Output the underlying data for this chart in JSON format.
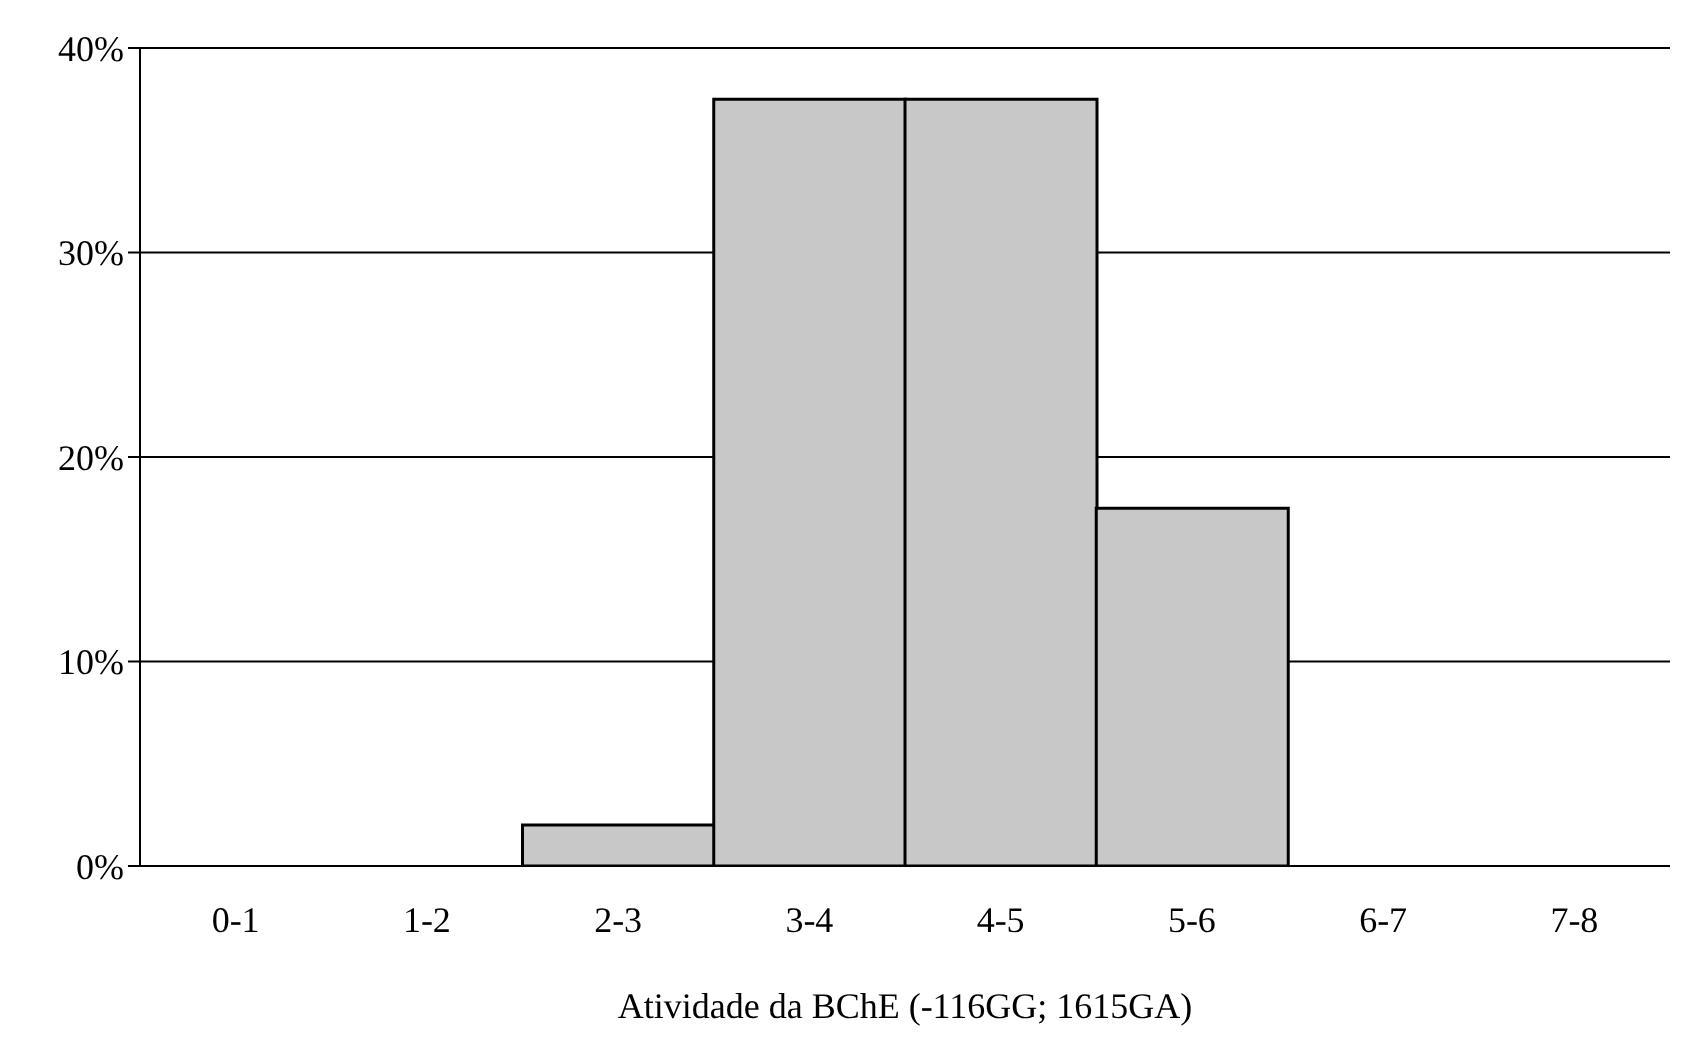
{
  "chart_data": {
    "type": "bar",
    "xlabel": "Atividade da BChE (-116GG; 1615GA)",
    "categories": [
      "0-1",
      "1-2",
      "2-3",
      "3-4",
      "4-5",
      "5-6",
      "6-7",
      "7-8"
    ],
    "series": [
      {
        "color": "#c8c8c8",
        "values": [
          0,
          0,
          2,
          37.5,
          37.5,
          17.5,
          0,
          0
        ]
      }
    ],
    "ylim": [
      0,
      40
    ],
    "yticks": [
      {
        "value": 0,
        "label": "0%"
      },
      {
        "value": 10,
        "label": "10%"
      },
      {
        "value": 20,
        "label": "20%"
      },
      {
        "value": 30,
        "label": "30%"
      },
      {
        "value": 40,
        "label": "40%"
      }
    ],
    "grid": "y",
    "legend": false
  }
}
